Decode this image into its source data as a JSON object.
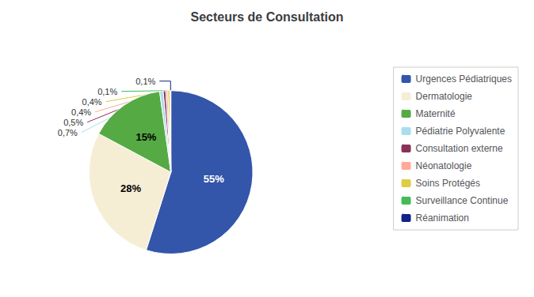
{
  "chart_data": {
    "type": "pie",
    "title": "Secteurs de Consultation",
    "categories": [
      "Urgences Pédiatriques",
      "Dermatologie",
      "Maternité",
      "Pédiatrie Polyvalente",
      "Consultation externe",
      "Néonatologie",
      "Soins Protégés",
      "Surveillance Continue",
      "Réanimation"
    ],
    "values": [
      55,
      28,
      15,
      0.7,
      0.5,
      0.4,
      0.4,
      0.1,
      0.1
    ],
    "value_labels": [
      "55%",
      "28%",
      "15%",
      "0,7%",
      "0,5%",
      "0,4%",
      "0,4%",
      "0,1%",
      "0,1%"
    ],
    "colors": [
      "#3355AA",
      "#F5EED5",
      "#55AA44",
      "#AADDEE",
      "#883355",
      "#FFAA99",
      "#DDCC44",
      "#44BB55",
      "#112288"
    ],
    "data_labels": true,
    "legend": "right"
  }
}
